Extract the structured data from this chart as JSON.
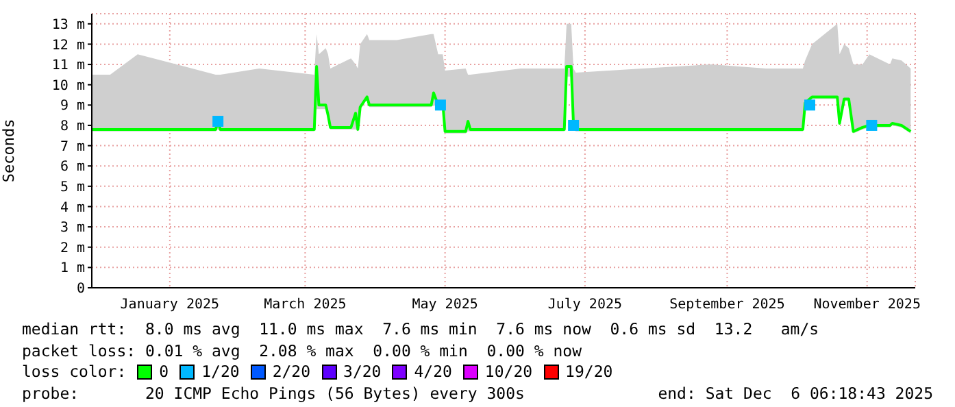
{
  "chart_data": {
    "type": "line",
    "ylabel": "Seconds",
    "xlim": [
      "2024-12-12",
      "2025-12-06"
    ],
    "xticks": [
      {
        "value": "2025-01-15",
        "label": "January 2025"
      },
      {
        "value": "2025-03-15",
        "label": "March 2025"
      },
      {
        "value": "2025-05-15",
        "label": "May 2025"
      },
      {
        "value": "2025-07-15",
        "label": "July 2025"
      },
      {
        "value": "2025-09-15",
        "label": "September 2025"
      },
      {
        "value": "2025-11-15",
        "label": "November 2025"
      }
    ],
    "ylim": [
      0,
      13.5
    ],
    "yticks": [
      0,
      {
        "value": 1,
        "label": "1 m"
      },
      {
        "value": 2,
        "label": "2 m"
      },
      {
        "value": 3,
        "label": "3 m"
      },
      {
        "value": 4,
        "label": "4 m"
      },
      {
        "value": 5,
        "label": "5 m"
      },
      {
        "value": 6,
        "label": "6 m"
      },
      {
        "value": 7,
        "label": "7 m"
      },
      {
        "value": 8,
        "label": "8 m"
      },
      {
        "value": 9,
        "label": "9 m"
      },
      {
        "value": 10,
        "label": "10 m"
      },
      {
        "value": 11,
        "label": "11 m"
      },
      {
        "value": 12,
        "label": "12 m"
      },
      {
        "value": 13,
        "label": "13 m"
      }
    ],
    "grid": true,
    "legend": "bottom",
    "legend_title": "loss color:",
    "series": [
      {
        "name": "0",
        "color": "#00ff00",
        "x": [
          "2024-12-12",
          "2024-12-20",
          "2025-01-01",
          "2025-01-18",
          "2025-02-04",
          "2025-02-05",
          "2025-02-06",
          "2025-02-23",
          "2025-03-19",
          "2025-03-20",
          "2025-03-21",
          "2025-03-24",
          "2025-03-25",
          "2025-03-26",
          "2025-04-04",
          "2025-04-06",
          "2025-04-07",
          "2025-04-08",
          "2025-04-11",
          "2025-04-12",
          "2025-04-24",
          "2025-05-09",
          "2025-05-10",
          "2025-05-12",
          "2025-05-14",
          "2025-05-15",
          "2025-05-24",
          "2025-05-25",
          "2025-05-26",
          "2025-06-17",
          "2025-07-06",
          "2025-07-07",
          "2025-07-09",
          "2025-07-10",
          "2025-07-11",
          "2025-08-09",
          "2025-09-08",
          "2025-10-02",
          "2025-10-18",
          "2025-10-19",
          "2025-10-22",
          "2025-11-02",
          "2025-11-03",
          "2025-11-05",
          "2025-11-07",
          "2025-11-09",
          "2025-11-13",
          "2025-11-16",
          "2025-11-25",
          "2025-11-26",
          "2025-11-30",
          "2025-12-04"
        ],
        "values": [
          7.8,
          7.8,
          7.8,
          7.8,
          7.8,
          8.2,
          7.8,
          7.8,
          7.8,
          10.9,
          9.0,
          9.0,
          8.5,
          7.9,
          7.9,
          8.6,
          7.8,
          8.9,
          9.4,
          9.0,
          9.0,
          9.0,
          9.6,
          9.0,
          9.1,
          7.7,
          7.7,
          8.2,
          7.8,
          7.8,
          7.8,
          10.9,
          10.9,
          8.0,
          7.8,
          7.8,
          7.8,
          7.8,
          7.8,
          9.1,
          9.4,
          9.4,
          8.1,
          9.3,
          9.3,
          7.7,
          7.9,
          8.0,
          8.0,
          8.1,
          8.0,
          7.7
        ],
        "lower": [
          7.7,
          7.7,
          7.7,
          7.7,
          7.7,
          7.8,
          7.7,
          7.7,
          7.7,
          8.8,
          8.8,
          8.8,
          8.4,
          7.8,
          7.8,
          7.8,
          7.7,
          8.8,
          9.3,
          8.9,
          8.9,
          8.9,
          9.0,
          8.9,
          9.0,
          7.6,
          7.6,
          7.7,
          7.7,
          7.7,
          7.7,
          10.4,
          10.4,
          7.8,
          7.7,
          7.7,
          7.7,
          7.7,
          7.7,
          9.0,
          9.3,
          9.3,
          8.0,
          9.2,
          9.2,
          7.6,
          7.8,
          7.9,
          7.9,
          8.0,
          7.9,
          7.6
        ],
        "upper": [
          10.5,
          10.5,
          11.5,
          11.0,
          10.5,
          10.5,
          10.5,
          10.8,
          10.5,
          12.5,
          11.5,
          11.8,
          11.5,
          10.8,
          11.3,
          11.0,
          10.8,
          12.0,
          12.5,
          12.2,
          12.2,
          12.5,
          12.5,
          11.5,
          11.5,
          10.7,
          10.8,
          10.5,
          10.5,
          10.8,
          10.8,
          13.0,
          13.0,
          10.8,
          10.6,
          10.8,
          11.0,
          10.8,
          10.8,
          11.2,
          12.0,
          13.0,
          11.5,
          12.0,
          11.8,
          11.0,
          11.0,
          11.5,
          11.0,
          11.3,
          11.2,
          10.8
        ]
      },
      {
        "name": "1/20",
        "color": "#00b8ff",
        "type": "scatter",
        "marker": "square",
        "x": [
          "2025-02-05",
          "2025-05-13",
          "2025-07-10",
          "2025-10-21",
          "2025-11-17"
        ],
        "values": [
          8.2,
          9.0,
          8.0,
          9.0,
          8.0
        ]
      },
      {
        "name": "2/20",
        "color": "#0059ff",
        "type": "scatter",
        "marker": "square"
      },
      {
        "name": "3/20",
        "color": "#5e00ff",
        "type": "scatter",
        "marker": "square"
      },
      {
        "name": "4/20",
        "color": "#7e00ff",
        "type": "scatter",
        "marker": "square"
      },
      {
        "name": "10/20",
        "color": "#dd00ff",
        "type": "scatter",
        "marker": "square"
      },
      {
        "name": "19/20",
        "color": "#ff0000",
        "type": "scatter",
        "marker": "square"
      }
    ],
    "annotations": [
      "median rtt:  8.0 ms avg  11.0 ms max  7.6 ms min  7.6 ms now  0.6 ms sd  13.2   am/s",
      "packet loss: 0.01 % avg  2.08 % max  0.00 % min  0.00 % now",
      "probe:       20 ICMP Echo Pings (56 Bytes) every 300s",
      "end: Sat Dec  6 06:18:43 2025"
    ]
  }
}
